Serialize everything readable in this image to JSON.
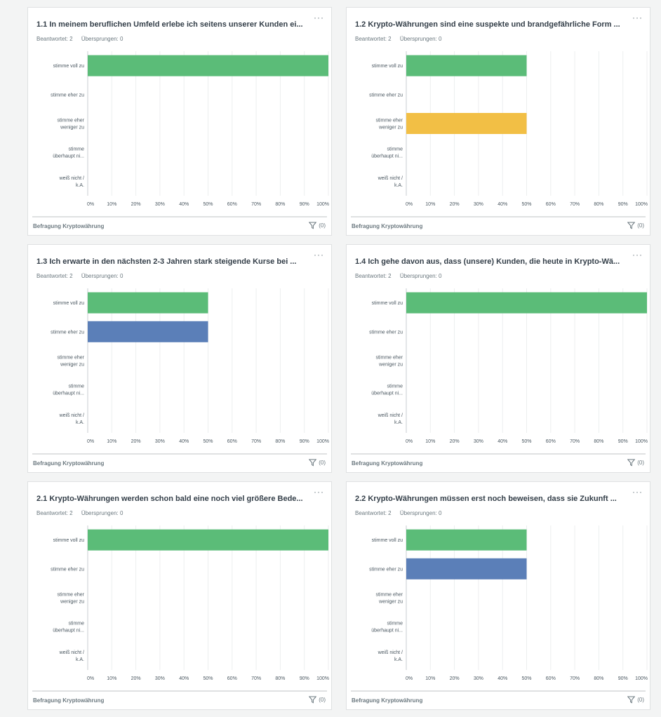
{
  "footer_label": "Befragung Kryptowährung",
  "filter_count": "(0)",
  "colors": {
    "stimme voll zu": "#5bbc78",
    "stimme eher zu": "#5b7fb8",
    "stimme eher weniger zu": "#f2bf45",
    "stimme überhaupt nicht zu": "#e35d5b",
    "weiß nicht / k.A.": "#9aa5ab"
  },
  "cards": [
    {
      "title": "1.1 In meinem beruflichen Umfeld erlebe ich seitens unserer Kunden ei...",
      "answered": "Beantwortet: 2",
      "skipped": "Übersprungen: 0"
    },
    {
      "title": "1.2 Krypto-Währungen sind eine suspekte und brandgefährliche Form ...",
      "answered": "Beantwortet: 2",
      "skipped": "Übersprungen: 0"
    },
    {
      "title": "1.3 Ich erwarte in den nächsten 2-3 Jahren stark steigende Kurse bei ...",
      "answered": "Beantwortet: 2",
      "skipped": "Übersprungen: 0"
    },
    {
      "title": "1.4 Ich gehe davon aus, dass (unsere) Kunden, die heute in Krypto-Wä...",
      "answered": "Beantwortet: 2",
      "skipped": "Übersprungen: 0"
    },
    {
      "title": "2.1 Krypto-Währungen werden schon bald eine noch viel größere Bede...",
      "answered": "Beantwortet: 2",
      "skipped": "Übersprungen: 0"
    },
    {
      "title": "2.2 Krypto-Währungen müssen erst noch beweisen, dass sie Zukunft ...",
      "answered": "Beantwortet: 2",
      "skipped": "Übersprungen: 0"
    }
  ],
  "chart_data": [
    {
      "type": "bar",
      "orientation": "horizontal",
      "categories": [
        "stimme voll zu",
        "stimme eher zu",
        "stimme eher weniger zu",
        "stimme überhaupt nicht zu",
        "weiß nicht / k.A."
      ],
      "category_labels": [
        [
          "stimme voll zu"
        ],
        [
          "stimme eher zu"
        ],
        [
          "stimme eher",
          "weniger zu"
        ],
        [
          "stimme",
          "überhaupt ni..."
        ],
        [
          "weiß nicht /",
          "k.A."
        ]
      ],
      "values": [
        100,
        0,
        0,
        0,
        0
      ],
      "xlim": [
        0,
        100
      ],
      "xticks": [
        "0%",
        "10%",
        "20%",
        "30%",
        "40%",
        "50%",
        "60%",
        "70%",
        "80%",
        "90%",
        "100%"
      ],
      "grid": true
    },
    {
      "type": "bar",
      "orientation": "horizontal",
      "categories": [
        "stimme voll zu",
        "stimme eher zu",
        "stimme eher weniger zu",
        "stimme überhaupt nicht zu",
        "weiß nicht / k.A."
      ],
      "category_labels": [
        [
          "stimme voll zu"
        ],
        [
          "stimme eher zu"
        ],
        [
          "stimme eher",
          "weniger zu"
        ],
        [
          "stimme",
          "überhaupt ni..."
        ],
        [
          "weiß nicht /",
          "k.A."
        ]
      ],
      "values": [
        50,
        0,
        50,
        0,
        0
      ],
      "xlim": [
        0,
        100
      ],
      "xticks": [
        "0%",
        "10%",
        "20%",
        "30%",
        "40%",
        "50%",
        "60%",
        "70%",
        "80%",
        "90%",
        "100%"
      ],
      "grid": true
    },
    {
      "type": "bar",
      "orientation": "horizontal",
      "categories": [
        "stimme voll zu",
        "stimme eher zu",
        "stimme eher weniger zu",
        "stimme überhaupt nicht zu",
        "weiß nicht / k.A."
      ],
      "category_labels": [
        [
          "stimme voll zu"
        ],
        [
          "stimme eher zu"
        ],
        [
          "stimme eher",
          "weniger zu"
        ],
        [
          "stimme",
          "überhaupt ni..."
        ],
        [
          "weiß nicht /",
          "k.A."
        ]
      ],
      "values": [
        50,
        50,
        0,
        0,
        0
      ],
      "xlim": [
        0,
        100
      ],
      "xticks": [
        "0%",
        "10%",
        "20%",
        "30%",
        "40%",
        "50%",
        "60%",
        "70%",
        "80%",
        "90%",
        "100%"
      ],
      "grid": true
    },
    {
      "type": "bar",
      "orientation": "horizontal",
      "categories": [
        "stimme voll zu",
        "stimme eher zu",
        "stimme eher weniger zu",
        "stimme überhaupt nicht zu",
        "weiß nicht / k.A."
      ],
      "category_labels": [
        [
          "stimme voll zu"
        ],
        [
          "stimme eher zu"
        ],
        [
          "stimme eher",
          "weniger zu"
        ],
        [
          "stimme",
          "überhaupt ni..."
        ],
        [
          "weiß nicht /",
          "k.A."
        ]
      ],
      "values": [
        100,
        0,
        0,
        0,
        0
      ],
      "xlim": [
        0,
        100
      ],
      "xticks": [
        "0%",
        "10%",
        "20%",
        "30%",
        "40%",
        "50%",
        "60%",
        "70%",
        "80%",
        "90%",
        "100%"
      ],
      "grid": true
    },
    {
      "type": "bar",
      "orientation": "horizontal",
      "categories": [
        "stimme voll zu",
        "stimme eher zu",
        "stimme eher weniger zu",
        "stimme überhaupt nicht zu",
        "weiß nicht / k.A."
      ],
      "category_labels": [
        [
          "stimme voll zu"
        ],
        [
          "stimme eher zu"
        ],
        [
          "stimme eher",
          "weniger zu"
        ],
        [
          "stimme",
          "überhaupt ni..."
        ],
        [
          "weiß nicht /",
          "k.A."
        ]
      ],
      "values": [
        100,
        0,
        0,
        0,
        0
      ],
      "xlim": [
        0,
        100
      ],
      "xticks": [
        "0%",
        "10%",
        "20%",
        "30%",
        "40%",
        "50%",
        "60%",
        "70%",
        "80%",
        "90%",
        "100%"
      ],
      "grid": true
    },
    {
      "type": "bar",
      "orientation": "horizontal",
      "categories": [
        "stimme voll zu",
        "stimme eher zu",
        "stimme eher weniger zu",
        "stimme überhaupt nicht zu",
        "weiß nicht / k.A."
      ],
      "category_labels": [
        [
          "stimme voll zu"
        ],
        [
          "stimme eher zu"
        ],
        [
          "stimme eher",
          "weniger zu"
        ],
        [
          "stimme",
          "überhaupt ni..."
        ],
        [
          "weiß nicht /",
          "k.A."
        ]
      ],
      "values": [
        50,
        50,
        0,
        0,
        0
      ],
      "xlim": [
        0,
        100
      ],
      "xticks": [
        "0%",
        "10%",
        "20%",
        "30%",
        "40%",
        "50%",
        "60%",
        "70%",
        "80%",
        "90%",
        "100%"
      ],
      "grid": true
    }
  ]
}
